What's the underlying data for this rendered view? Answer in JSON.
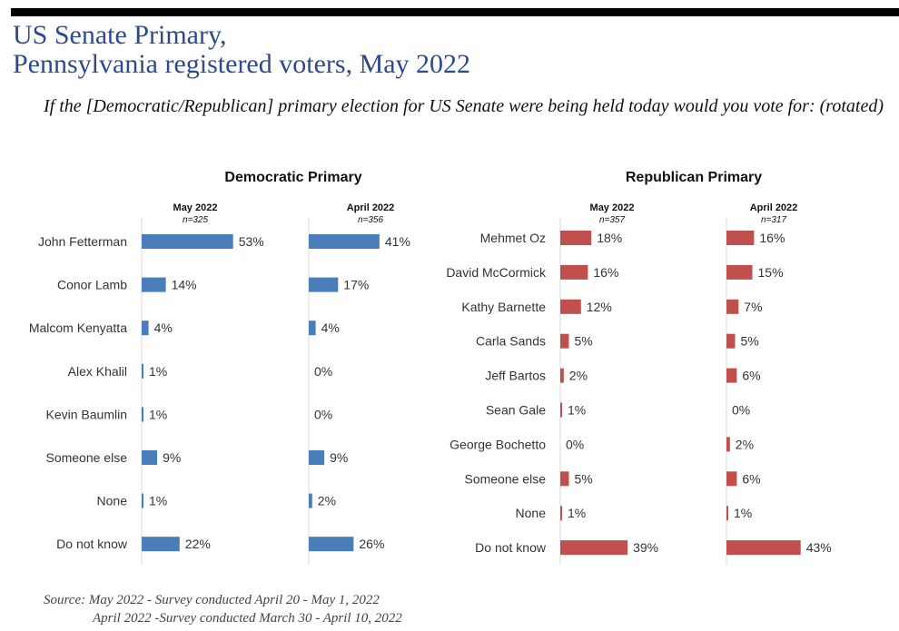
{
  "title_line1": "US Senate Primary,",
  "title_line2": "Pennsylvania registered voters, May 2022",
  "question": "If the [Democratic/Republican] primary election for US Senate were being held today would you vote for: (rotated)",
  "source_line1": "Source: May 2022 - Survey conducted April 20 - May 1, 2022",
  "source_line2": "April 2022 -Survey conducted March 30 - April 10, 2022",
  "colors": {
    "democratic": "#4a7ebb",
    "republican": "#c0504d"
  },
  "chart_data": [
    {
      "type": "bar",
      "title": "Democratic Primary",
      "categories": [
        "John Fetterman",
        "Conor Lamb",
        "Malcom Kenyatta",
        "Alex Khalil",
        "Kevin Baumlin",
        "Someone else",
        "None",
        "Do not know"
      ],
      "series": [
        {
          "name": "May 2022",
          "n": "n=325",
          "values": [
            53,
            14,
            4,
            1,
            1,
            9,
            1,
            22
          ],
          "labels": [
            "53%",
            "14%",
            "4%",
            "1%",
            "1%",
            "9%",
            "1%",
            "22%"
          ]
        },
        {
          "name": "April 2022",
          "n": "n=356",
          "values": [
            41,
            17,
            4,
            0,
            0,
            9,
            2,
            26
          ],
          "labels": [
            "41%",
            "17%",
            "4%",
            "0%",
            "0%",
            "9%",
            "2%",
            "26%"
          ]
        }
      ],
      "unit": "%"
    },
    {
      "type": "bar",
      "title": "Republican Primary",
      "categories": [
        "Mehmet Oz",
        "David McCormick",
        "Kathy Barnette",
        "Carla Sands",
        "Jeff Bartos",
        "Sean Gale",
        "George Bochetto",
        "Someone else",
        "None",
        "Do not know"
      ],
      "series": [
        {
          "name": "May 2022",
          "n": "n=357",
          "values": [
            18,
            16,
            12,
            5,
            2,
            1,
            0,
            5,
            1,
            39
          ],
          "labels": [
            "18%",
            "16%",
            "12%",
            "5%",
            "2%",
            "1%",
            "0%",
            "5%",
            "1%",
            "39%"
          ]
        },
        {
          "name": "April 2022",
          "n": "n=317",
          "values": [
            16,
            15,
            7,
            5,
            6,
            0,
            2,
            6,
            1,
            43
          ],
          "labels": [
            "16%",
            "15%",
            "7%",
            "5%",
            "6%",
            "0%",
            "2%",
            "6%",
            "1%",
            "43%"
          ]
        }
      ],
      "unit": "%"
    }
  ]
}
